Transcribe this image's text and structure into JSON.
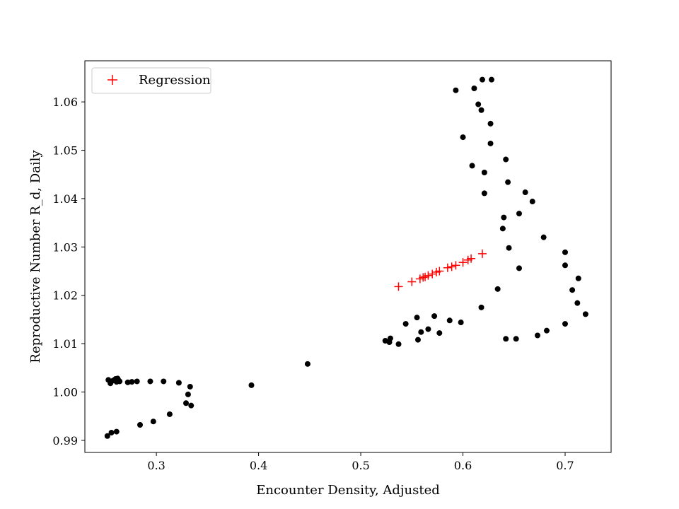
{
  "chart_data": {
    "type": "scatter",
    "xlabel": "Encounter Density, Adjusted",
    "ylabel": "Reproductive Number R_d, Daily",
    "xlim": [
      0.23,
      0.745
    ],
    "ylim": [
      0.9875,
      1.0685
    ],
    "x_ticks": [
      0.3,
      0.4,
      0.5,
      0.6,
      0.7
    ],
    "y_ticks": [
      0.99,
      1.0,
      1.01,
      1.02,
      1.03,
      1.04,
      1.05,
      1.06
    ],
    "grid": false,
    "legend": {
      "location": "upper-left",
      "entries": [
        "Regression"
      ]
    },
    "series": [
      {
        "marker": "dot",
        "color": "#000000",
        "points": [
          [
            0.253,
            1.0025
          ],
          [
            0.255,
            1.0018
          ],
          [
            0.256,
            1.0022
          ],
          [
            0.258,
            1.0024
          ],
          [
            0.26,
            1.0027
          ],
          [
            0.261,
            1.0021
          ],
          [
            0.262,
            1.0028
          ],
          [
            0.263,
            1.0024
          ],
          [
            0.264,
            1.0022
          ],
          [
            0.272,
            1.002
          ],
          [
            0.276,
            1.0021
          ],
          [
            0.281,
            1.0022
          ],
          [
            0.294,
            1.0022
          ],
          [
            0.307,
            1.0022
          ],
          [
            0.322,
            1.0019
          ],
          [
            0.331,
            0.9995
          ],
          [
            0.333,
            1.0011
          ],
          [
            0.334,
            0.9972
          ],
          [
            0.329,
            0.9977
          ],
          [
            0.313,
            0.9954
          ],
          [
            0.297,
            0.9939
          ],
          [
            0.284,
            0.9932
          ],
          [
            0.261,
            0.9918
          ],
          [
            0.256,
            0.9916
          ],
          [
            0.252,
            0.9909
          ],
          [
            0.393,
            1.0014
          ],
          [
            0.448,
            1.0058
          ],
          [
            0.524,
            1.0106
          ],
          [
            0.528,
            1.0103
          ],
          [
            0.529,
            1.0111
          ],
          [
            0.537,
            1.0099
          ],
          [
            0.544,
            1.0141
          ],
          [
            0.555,
            1.0154
          ],
          [
            0.556,
            1.0108
          ],
          [
            0.559,
            1.0124
          ],
          [
            0.566,
            1.013
          ],
          [
            0.572,
            1.0157
          ],
          [
            0.577,
            1.0122
          ],
          [
            0.587,
            1.0148
          ],
          [
            0.598,
            1.0144
          ],
          [
            0.618,
            1.0175
          ],
          [
            0.634,
            1.0213
          ],
          [
            0.642,
            1.011
          ],
          [
            0.652,
            1.011
          ],
          [
            0.673,
            1.0117
          ],
          [
            0.682,
            1.0127
          ],
          [
            0.7,
            1.0141
          ],
          [
            0.72,
            1.0161
          ],
          [
            0.712,
            1.0184
          ],
          [
            0.707,
            1.0211
          ],
          [
            0.713,
            1.0235
          ],
          [
            0.7,
            1.0262
          ],
          [
            0.7,
            1.0289
          ],
          [
            0.679,
            1.032
          ],
          [
            0.655,
            1.0256
          ],
          [
            0.645,
            1.0298
          ],
          [
            0.639,
            1.0338
          ],
          [
            0.64,
            1.0361
          ],
          [
            0.655,
            1.0369
          ],
          [
            0.668,
            1.0394
          ],
          [
            0.661,
            1.0413
          ],
          [
            0.621,
            1.0411
          ],
          [
            0.644,
            1.0434
          ],
          [
            0.621,
            1.0454
          ],
          [
            0.609,
            1.0468
          ],
          [
            0.642,
            1.0481
          ],
          [
            0.627,
            1.0514
          ],
          [
            0.6,
            1.0527
          ],
          [
            0.627,
            1.0555
          ],
          [
            0.618,
            1.0583
          ],
          [
            0.615,
            1.0595
          ],
          [
            0.593,
            1.0624
          ],
          [
            0.611,
            1.0628
          ],
          [
            0.619,
            1.0646
          ],
          [
            0.628,
            1.0646
          ]
        ]
      },
      {
        "name": "Regression",
        "marker": "plus",
        "color": "#ff0000",
        "points": [
          [
            0.537,
            1.0218
          ],
          [
            0.55,
            1.0228
          ],
          [
            0.558,
            1.0234
          ],
          [
            0.561,
            1.0237
          ],
          [
            0.563,
            1.0238
          ],
          [
            0.566,
            1.0241
          ],
          [
            0.57,
            1.0244
          ],
          [
            0.574,
            1.0248
          ],
          [
            0.577,
            1.025
          ],
          [
            0.585,
            1.0257
          ],
          [
            0.589,
            1.0259
          ],
          [
            0.593,
            1.0262
          ],
          [
            0.6,
            1.0268
          ],
          [
            0.605,
            1.0273
          ],
          [
            0.608,
            1.0276
          ],
          [
            0.619,
            1.0286
          ]
        ]
      }
    ]
  }
}
